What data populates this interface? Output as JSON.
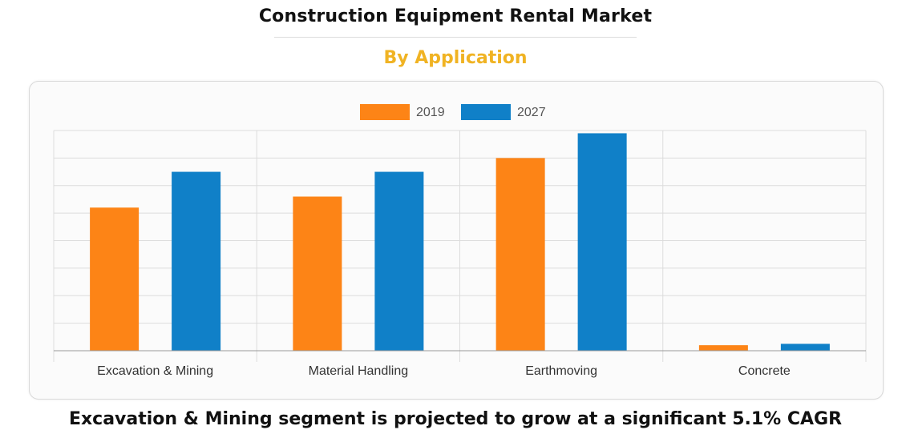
{
  "header": {
    "title": "Construction Equipment Rental Market",
    "subtitle": "By Application"
  },
  "footer": {
    "note": "Excavation & Mining segment is projected to grow at a significant 5.1% CAGR"
  },
  "colors": {
    "title": "#111111",
    "subtitle": "#f0b323",
    "series_2019": "#fd8416",
    "series_2027": "#1080c8",
    "grid": "#dcdcdc",
    "axis": "#999999"
  },
  "chart_data": {
    "type": "bar",
    "title": "",
    "xlabel": "",
    "ylabel": "",
    "categories": [
      "Excavation & Mining",
      "Material Handling",
      "Earthmoving",
      "Concrete"
    ],
    "series": [
      {
        "name": "2019",
        "color": "#fd8416",
        "values": [
          52,
          56,
          70,
          2
        ]
      },
      {
        "name": "2027",
        "color": "#1080c8",
        "values": [
          65,
          65,
          79,
          2.5
        ]
      }
    ],
    "ylim": [
      0,
      80
    ],
    "yticks_count": 8,
    "grid": true,
    "legend_position": "top-center",
    "y_tick_labels_visible": false
  }
}
